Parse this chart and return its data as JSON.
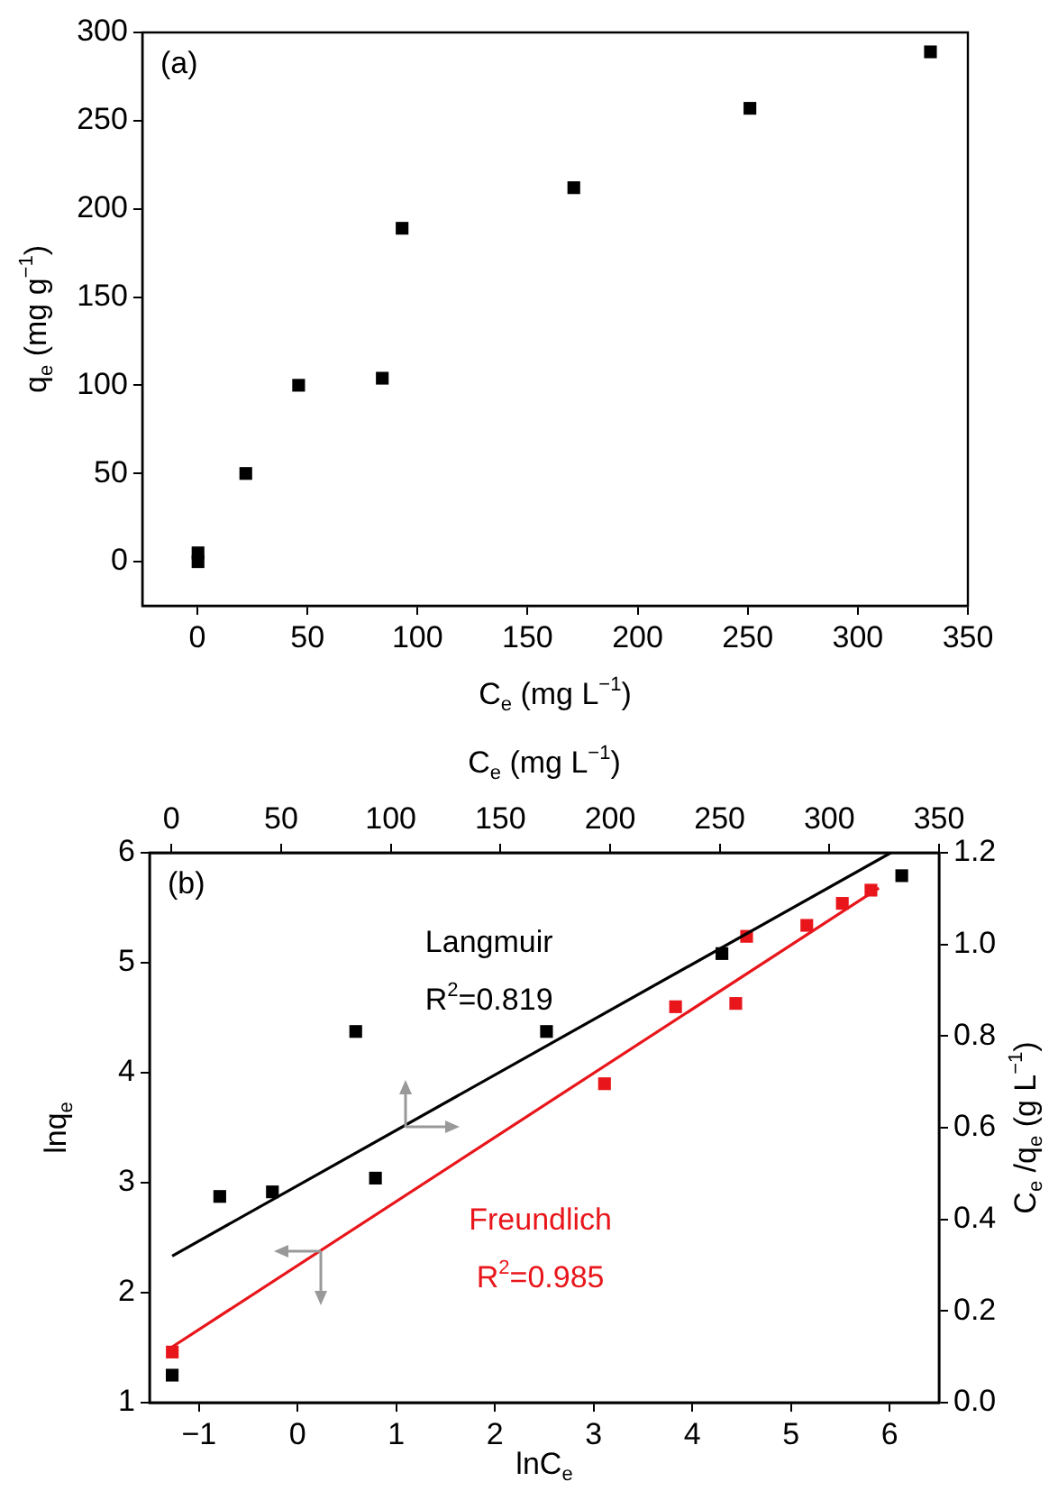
{
  "chart_data": [
    {
      "type": "scatter",
      "title": "(a)",
      "xlabel": "C$_{e}$ (mg L$^{−1}$)",
      "ylabel": "q$_{e}$ (mg g$^{−1}$)",
      "marker": "square",
      "color": "#000000",
      "x": [
        0.3,
        0.3,
        22,
        46,
        84,
        93,
        171,
        251,
        333
      ],
      "values": [
        0,
        5,
        50,
        100,
        104,
        189,
        212,
        257,
        289
      ],
      "xlim": [
        -25,
        350
      ],
      "xticks": [
        0,
        50,
        100,
        150,
        200,
        250,
        300,
        350
      ],
      "ylim": [
        -25,
        300
      ],
      "yticks": [
        0,
        50,
        100,
        150,
        200,
        250,
        300
      ]
    },
    {
      "type": "scatter",
      "title": "(b)",
      "xlabel": "lnC$_{e}$",
      "ylabel": "lnq$_{e}$",
      "marker": "square",
      "xlim": [
        -1.5,
        6.5
      ],
      "xticks": [
        {
          "value": -1,
          "label": "−1"
        },
        0,
        1,
        2,
        3,
        4,
        5,
        6
      ],
      "ylim": [
        1,
        6
      ],
      "yticks": [
        1,
        2,
        3,
        4,
        5,
        6
      ],
      "series": [
        {
          "name": "Freundlich",
          "color": "#e8161b",
          "x": [
            -1.27,
            3.11,
            3.83,
            4.44,
            4.55,
            5.16,
            5.52,
            5.81
          ],
          "values": [
            1.46,
            3.9,
            4.6,
            4.63,
            5.24,
            5.34,
            5.54,
            5.66
          ]
        },
        {
          "type": "line",
          "marker": "none",
          "color": "#e8161b",
          "x": [
            -1.3,
            5.89
          ],
          "values": [
            1.49,
            5.68
          ]
        }
      ],
      "annotations": [
        "R$^{2}$=0.985"
      ]
    },
    {
      "type": "scatter",
      "xlabel": "C$_{e}$ (mg L$^{−1}$)",
      "ylabel": "C$_{e}$ /q$_{e}$ (g L$^{−1}$)",
      "marker": "square",
      "xlim": [
        -10,
        350
      ],
      "xticks": [
        0,
        50,
        100,
        150,
        200,
        250,
        300,
        350
      ],
      "ylim": [
        0,
        1.2
      ],
      "yticks": [
        {
          "value": 0,
          "label": "0.0"
        },
        0.2,
        0.4,
        0.6,
        0.8,
        {
          "value": 1,
          "label": "1.0"
        },
        1.2
      ],
      "series": [
        {
          "name": "Langmuir",
          "color": "#000000",
          "x": [
            0.3,
            22,
            46,
            84,
            93,
            171,
            251,
            333
          ],
          "values": [
            0.06,
            0.45,
            0.46,
            0.81,
            0.49,
            0.81,
            0.98,
            1.15
          ]
        },
        {
          "type": "line",
          "marker": "none",
          "color": "#000000",
          "x": [
            0.3,
            328
          ],
          "values": [
            0.32,
            1.2
          ]
        }
      ],
      "annotations": [
        "R$^{2}$=0.819"
      ]
    }
  ]
}
